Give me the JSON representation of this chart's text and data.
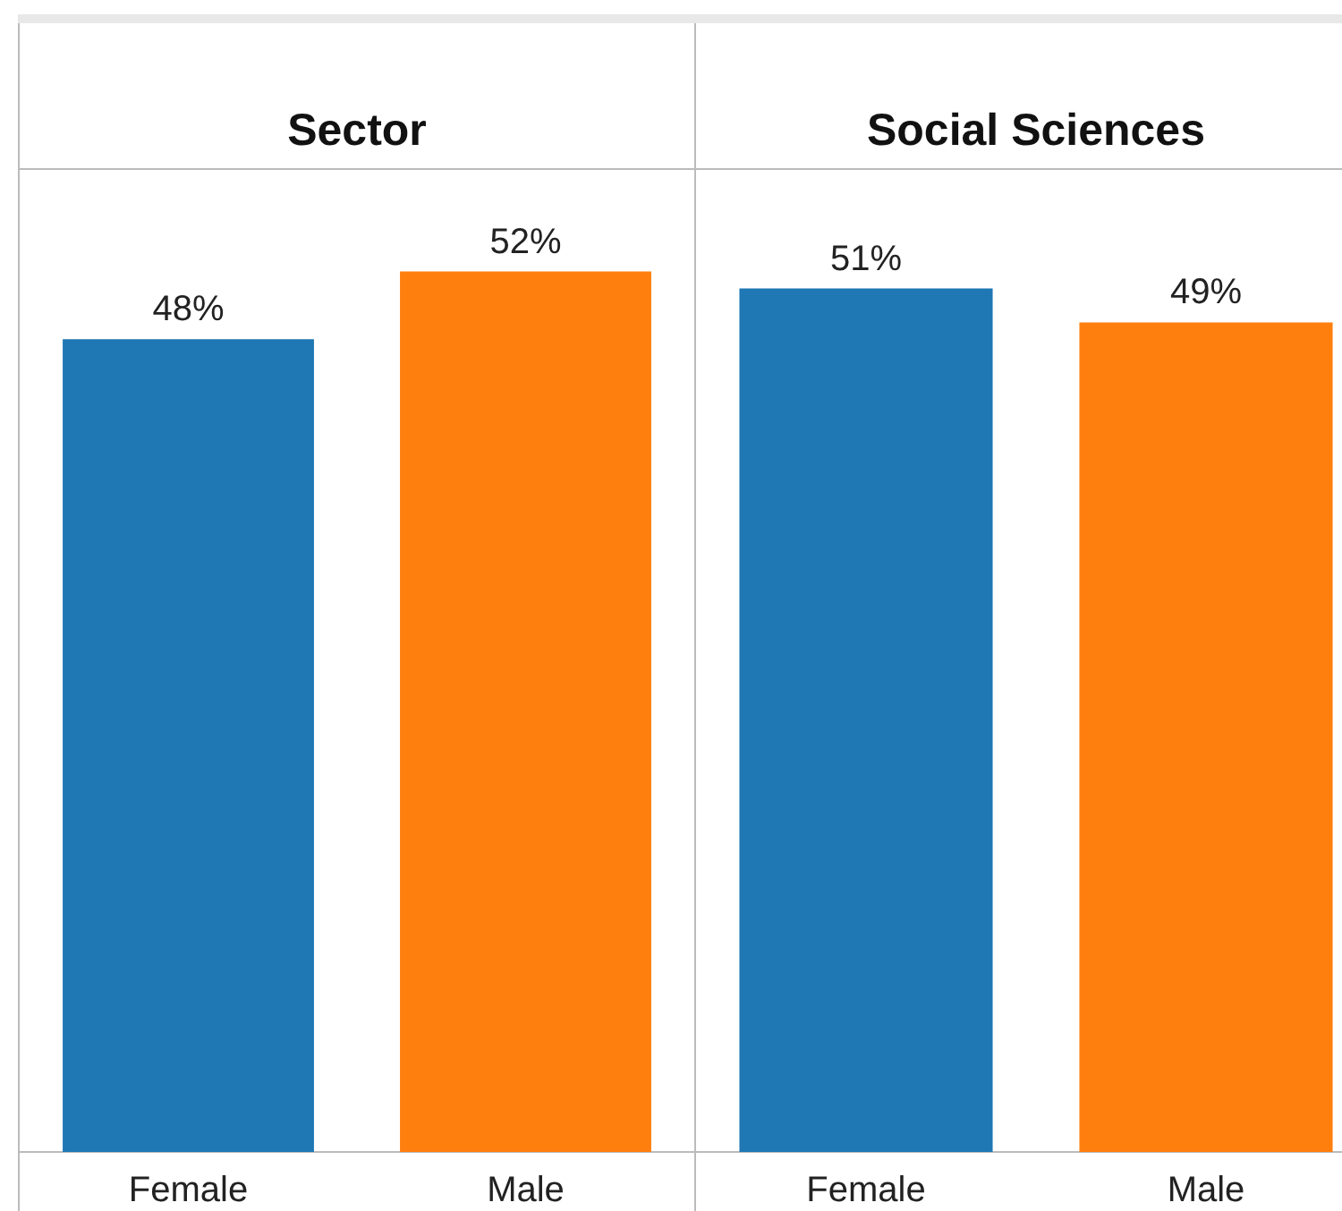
{
  "chart_data": [
    {
      "type": "bar",
      "title": "Sector",
      "categories": [
        "Female",
        "Male"
      ],
      "values": [
        48,
        52
      ],
      "colors": [
        "#1f77b4",
        "#ff7f0e"
      ],
      "value_labels": [
        "48%",
        "52%"
      ],
      "ylim": [
        0,
        58
      ],
      "tick_labels": "x",
      "grid": false,
      "legend": false
    },
    {
      "type": "bar",
      "title": "Social Sciences",
      "categories": [
        "Female",
        "Male"
      ],
      "values": [
        51,
        49
      ],
      "colors": [
        "#1f77b4",
        "#ff7f0e"
      ],
      "value_labels": [
        "51%",
        "49%"
      ],
      "ylim": [
        0,
        58
      ],
      "tick_labels": "x",
      "grid": false,
      "legend": false
    }
  ]
}
